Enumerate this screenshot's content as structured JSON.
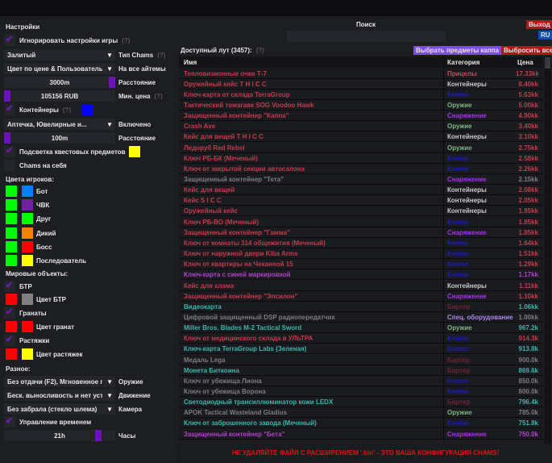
{
  "header": {
    "search_label": "Поиск",
    "search_value": "",
    "exit": "Выход",
    "lang": "RU"
  },
  "settings": {
    "title": "Настройки",
    "hint": "(?)",
    "ignore_game": "Игнорировать настройки игры",
    "chams_type_value": "Залитый",
    "chams_type_label": "Тип Chams",
    "color_mode_value": "Цвет по цене & Пользователь",
    "color_mode_label": "На все айтемы",
    "distance_value": "3000m",
    "distance_label": "Расстояние",
    "distance_level": 1.0,
    "min_price_value": "105156 RUB",
    "min_price_label": "Мин. цена",
    "min_price_level": 0.0,
    "containers": "Контейнеры",
    "containers_color": "#0000ff",
    "container_types_value": "Аптечка, Ювелирные и...",
    "container_types_label": "Включено",
    "container_dist_value": "100m",
    "container_dist_label": "Расстояние",
    "container_dist_level": 0.0,
    "quest_highlight": "Подсветка квестовых предметов",
    "quest_color": "#ffff00",
    "chams_self": "Chams на себя"
  },
  "player_colors": {
    "title": "Цвета игроков:",
    "items": [
      {
        "label": "Бот",
        "c1": "#00ff00",
        "c2": "#0080ff"
      },
      {
        "label": "ЧВК",
        "c1": "#00ff00",
        "c2": "#7020a0"
      },
      {
        "label": "Друг",
        "c1": "#00ff00",
        "c2": "#00ff00"
      },
      {
        "label": "Дикий",
        "c1": "#00ff00",
        "c2": "#ff8000"
      },
      {
        "label": "Босс",
        "c1": "#00ff00",
        "c2": "#ff0000"
      },
      {
        "label": "Последователь",
        "c1": "#00ff00",
        "c2": "#ffff00"
      }
    ]
  },
  "world": {
    "title": "Мировые объекты:",
    "btr": "БТР",
    "btr_color": "Цвет БТР",
    "btr_c1": "#ff0000",
    "btr_c2": "#808080",
    "grenades": "Гранаты",
    "grenade_color": "Цвет гранат",
    "gr_c1": "#ff0000",
    "gr_c2": "#ff0000",
    "tripwires": "Растяжки",
    "tripwire_color": "Цвет растяжек",
    "tw_c1": "#ff0000",
    "tw_c2": "#ffff00"
  },
  "misc": {
    "title": "Разное:",
    "weapon_value": "Без отдачи (F2), Мгновенное п",
    "weapon_label": "Оружие",
    "movement_value": "Беск. выносливость и нет уста",
    "movement_label": "Движение",
    "camera_value": "Без забрала (стекло шлема)",
    "camera_label": "Камера",
    "time_control": "Управление временем",
    "hours_value": "21h",
    "hours_label": "Часы",
    "hours_level": 0.9
  },
  "loot": {
    "title": "Доступный лут (3457):",
    "hint": "(?)",
    "select_kappa": "Выбрать предметы каппа",
    "drop_all": "Выбросить все",
    "columns": [
      "Имя",
      "Категория",
      "Цена"
    ],
    "colors": {
      "red": "#c23a4c",
      "purple": "#b040c8",
      "teal": "#3ab5aa",
      "grey": "#7c7c80",
      "Прицелы": "#c84a58",
      "Контейнеры": "#c8c8c8",
      "Ключи": "#1c1cb0",
      "Оружие": "#7fb47f",
      "Снаряжение": "#a632e6",
      "Бартер": "#6c2232",
      "Спец. оборудование": "#a88ae8"
    },
    "rows": [
      [
        "Тепловизионные очки Т-7",
        "red",
        "Прицелы",
        "17.33kk"
      ],
      [
        "Оружейный кейс T H I C C",
        "red",
        "Контейнеры",
        "8.40kk"
      ],
      [
        "Ключ-карта от склада TerraGroup",
        "red",
        "Ключи",
        "5.63kk"
      ],
      [
        "Тактический томагавк SOG Voodoo Hawk",
        "red",
        "Оружие",
        "5.00kk"
      ],
      [
        "Защищенный контейнер \"Каппа\"",
        "red",
        "Снаряжение",
        "4.90kk"
      ],
      [
        "Crash Axe",
        "red",
        "Оружие",
        "3.40kk"
      ],
      [
        "Кейс для вещей T H I C C",
        "red",
        "Контейнеры",
        "3.10kk"
      ],
      [
        "Ледоруб Red Rebel",
        "red",
        "Оружие",
        "2.75kk"
      ],
      [
        "Ключ РБ-БК (Меченый)",
        "red",
        "Ключи",
        "2.58kk"
      ],
      [
        "Ключ от закрытой секции автосалона",
        "red",
        "Ключи",
        "2.26kk"
      ],
      [
        "Защищенный контейнер \"Тета\"",
        "grey",
        "Снаряжение",
        "2.15kk"
      ],
      [
        "Кейс для вещей",
        "red",
        "Контейнеры",
        "2.08kk"
      ],
      [
        "Кейс S I C C",
        "red",
        "Контейнеры",
        "2.05kk"
      ],
      [
        "Оружейный кейс",
        "red",
        "Контейнеры",
        "1.95kk"
      ],
      [
        "Ключ РБ-ВО (Меченый)",
        "red",
        "Ключи",
        "1.85kk"
      ],
      [
        "Защищенный контейнер \"Гамма\"",
        "red",
        "Снаряжение",
        "1.85kk"
      ],
      [
        "Ключ от комнаты 314 общежития (Меченый)",
        "red",
        "Ключи",
        "1.64kk"
      ],
      [
        "Ключ от наружной двери Kiba Arms",
        "red",
        "Ключи",
        "1.51kk"
      ],
      [
        "Ключ от квартиры на Чеканной 15",
        "red",
        "Ключи",
        "1.29kk"
      ],
      [
        "Ключ-карта с синей маркировкой",
        "purple",
        "Ключи",
        "1.17kk"
      ],
      [
        "Кейс для хлама",
        "red",
        "Контейнеры",
        "1.11kk"
      ],
      [
        "Защищенный контейнер \"Эпсилон\"",
        "red",
        "Снаряжение",
        "1.10kk"
      ],
      [
        "Видеокарта",
        "teal",
        "Бартер",
        "1.06kk"
      ],
      [
        "Цифровой защищенный DSP радиопередатчик",
        "grey",
        "Спец. оборудование",
        "1.00kk"
      ],
      [
        "Miller Bros. Blades M-2 Tactical Sword",
        "teal",
        "Оружие",
        "967.2k"
      ],
      [
        "Ключ от медицинского склада в УЛЬТРА",
        "red",
        "Ключи",
        "914.3k"
      ],
      [
        "Ключ-карта TerraGroup Labs (Зеленая)",
        "teal",
        "Ключи",
        "913.8k"
      ],
      [
        "Медаль Lega",
        "grey",
        "Бартер",
        "900.0k"
      ],
      [
        "Монета Биткоина",
        "teal",
        "Бартер",
        "869.6k"
      ],
      [
        "Ключ от убежища Лиона",
        "grey",
        "Ключи",
        "850.0k"
      ],
      [
        "Ключ от убежища Ворона",
        "grey",
        "Ключи",
        "800.0k"
      ],
      [
        "Светодиодный трансиллюминатор кожи LEDX",
        "teal",
        "Бартер",
        "796.4k"
      ],
      [
        "APOK Tactical Wasteland Gladius",
        "grey",
        "Оружие",
        "785.0k"
      ],
      [
        "Ключ от заброшенного завода (Меченый)",
        "teal",
        "Ключи",
        "751.8k"
      ],
      [
        "Защищенный контейнер \"Бета\"",
        "purple",
        "Снаряжение",
        "750.0k"
      ]
    ]
  },
  "footer": {
    "warning": "НЕ УДАЛЯЙТЕ ФАЙЛ С РАСШИРЕНИЕМ '.bin' - ЭТО ВАША КОНФИГУРАЦИЯ CHAMS!"
  }
}
